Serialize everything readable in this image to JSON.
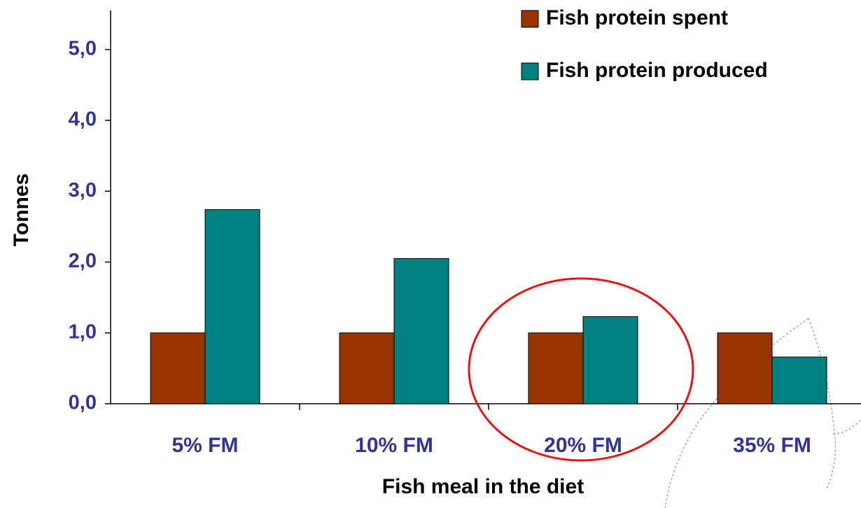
{
  "chart_data": {
    "type": "bar",
    "categories": [
      "5% FM",
      "10% FM",
      "20% FM",
      "35% FM"
    ],
    "series": [
      {
        "name": "Fish protein spent",
        "color": "#993300",
        "values": [
          1.0,
          1.0,
          1.0,
          1.0
        ]
      },
      {
        "name": "Fish protein produced",
        "color": "#008080",
        "values": [
          2.74,
          2.05,
          1.23,
          0.66
        ]
      }
    ],
    "xlabel": "Fish meal in the diet",
    "ylabel": "Tonnes",
    "ylim": [
      0,
      5.55
    ],
    "yticks": [
      {
        "value": 0,
        "label": "0,0"
      },
      {
        "value": 1,
        "label": "1,0"
      },
      {
        "value": 2,
        "label": "2,0"
      },
      {
        "value": 3,
        "label": "3,0"
      },
      {
        "value": 4,
        "label": "4,0"
      },
      {
        "value": 5,
        "label": "5,0"
      }
    ],
    "legend": "upper right"
  }
}
